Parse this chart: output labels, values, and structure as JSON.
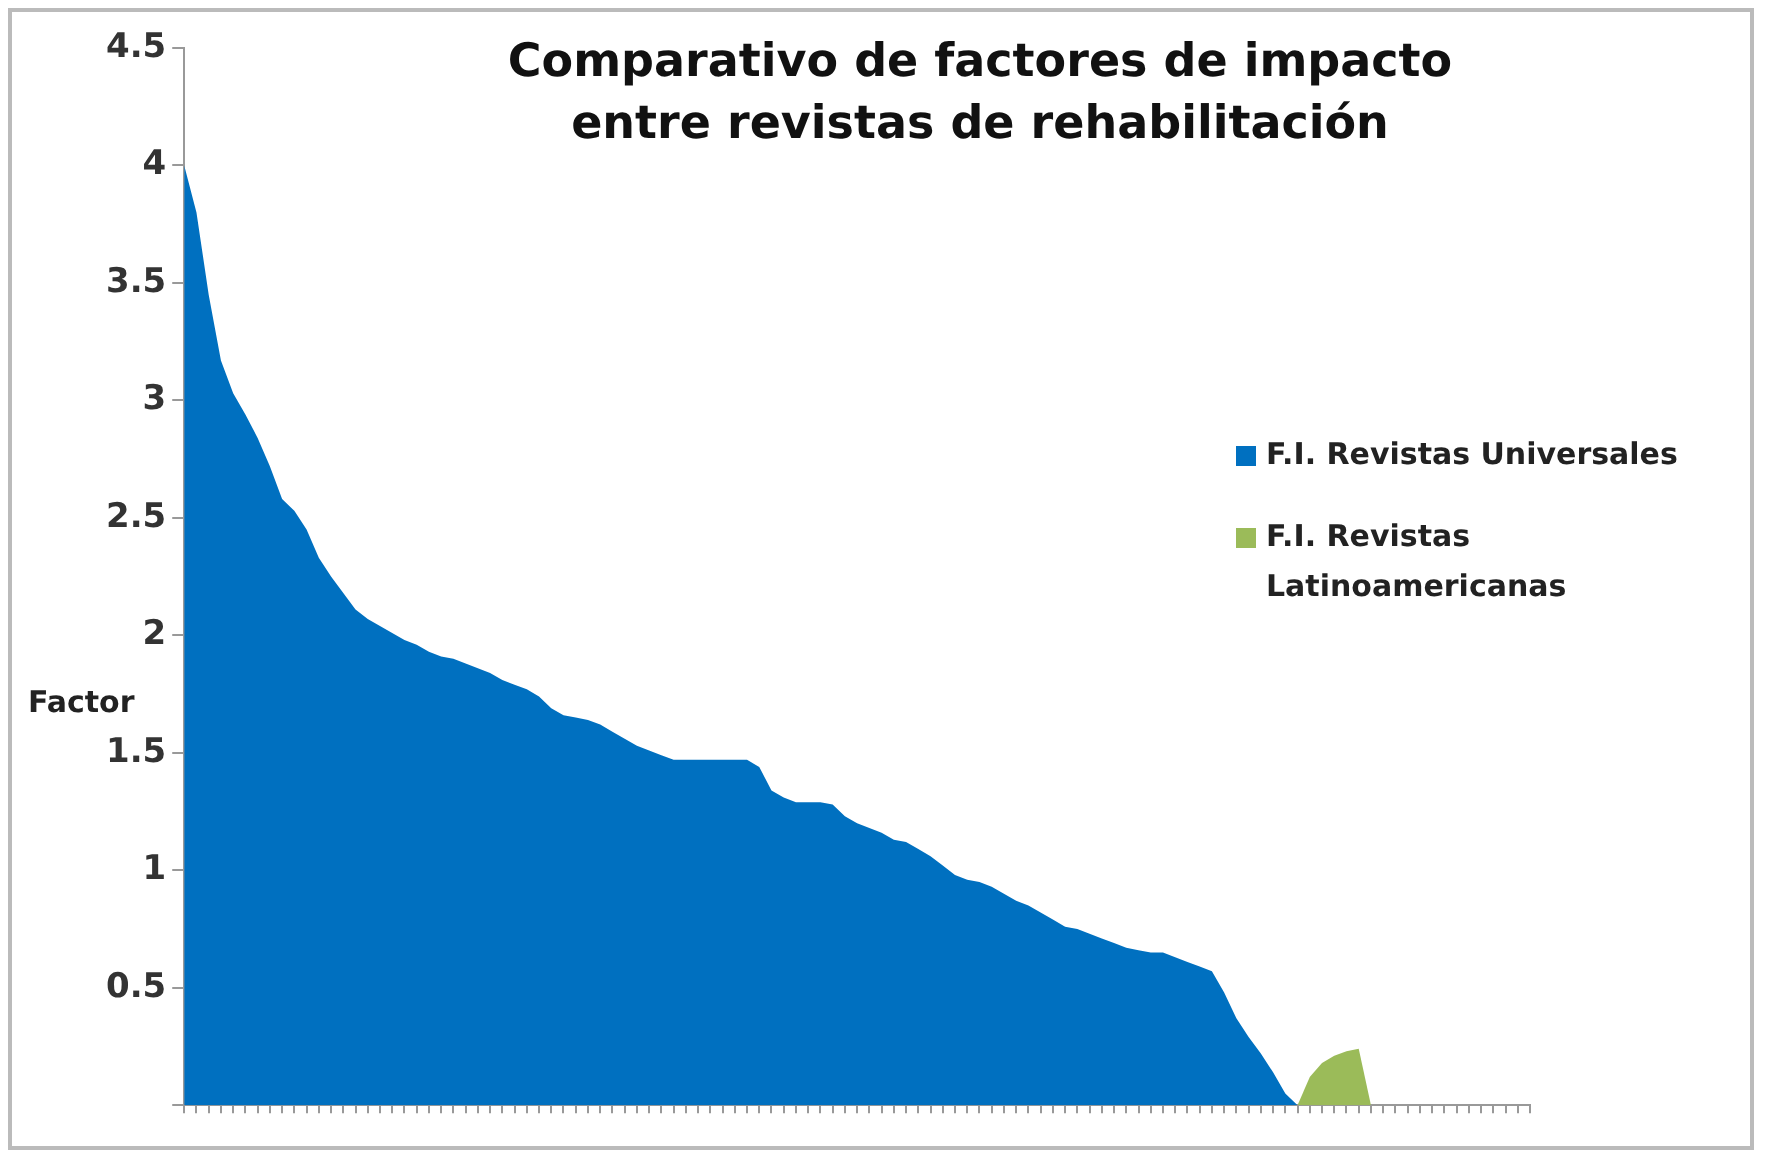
{
  "chart_data": {
    "type": "area",
    "title": "Comparativo de factores de impacto entre revistas de rehabilitación",
    "ylabel": "Factor",
    "categories": [
      null,
      null,
      null,
      null,
      null,
      null,
      null,
      null,
      null,
      null,
      null,
      null,
      null,
      null,
      null,
      null,
      null,
      null,
      null,
      null,
      null,
      null,
      null,
      null,
      null,
      null,
      null,
      null,
      null,
      null,
      null,
      null,
      null,
      null,
      null,
      null,
      null,
      null,
      null,
      null,
      null,
      null,
      null,
      null,
      null,
      null,
      null,
      null,
      null,
      null,
      null,
      null,
      null,
      null,
      null,
      null,
      null,
      null,
      null,
      null,
      null,
      null,
      null,
      null,
      null,
      null,
      null,
      null,
      null,
      null,
      null,
      null,
      null,
      null,
      null,
      null,
      null,
      null,
      null,
      null,
      null,
      null,
      null,
      null,
      null,
      null,
      null,
      null,
      null,
      null,
      null,
      null,
      null,
      null,
      null,
      null,
      null,
      null,
      null,
      null,
      null,
      null,
      null,
      null,
      null,
      null,
      null,
      null,
      null,
      null,
      null
    ],
    "series": [
      {
        "name": "F.I. Revistas Universales",
        "color": "#0070c0",
        "values": [
          4.0,
          3.8,
          3.45,
          3.17,
          3.03,
          2.94,
          2.84,
          2.72,
          2.58,
          2.53,
          2.45,
          2.33,
          2.25,
          2.18,
          2.11,
          2.07,
          2.04,
          2.01,
          1.98,
          1.96,
          1.93,
          1.91,
          1.9,
          1.88,
          1.86,
          1.84,
          1.81,
          1.79,
          1.77,
          1.74,
          1.69,
          1.66,
          1.65,
          1.64,
          1.62,
          1.59,
          1.56,
          1.53,
          1.51,
          1.49,
          1.47,
          1.47,
          1.47,
          1.47,
          1.47,
          1.47,
          1.47,
          1.44,
          1.34,
          1.31,
          1.29,
          1.29,
          1.29,
          1.28,
          1.23,
          1.2,
          1.18,
          1.16,
          1.13,
          1.12,
          1.09,
          1.06,
          1.02,
          0.98,
          0.96,
          0.95,
          0.93,
          0.9,
          0.87,
          0.85,
          0.82,
          0.79,
          0.76,
          0.75,
          0.73,
          0.71,
          0.69,
          0.67,
          0.66,
          0.65,
          0.65,
          0.63,
          0.61,
          0.59,
          0.57,
          0.48,
          0.37,
          0.29,
          0.22,
          0.14,
          0.05,
          0,
          null,
          null,
          null,
          null,
          null,
          null,
          null,
          null,
          null,
          null,
          null,
          null,
          null,
          null,
          null,
          null,
          null,
          null,
          null
        ]
      },
      {
        "name": "F.I. Revistas Latinoamericanas",
        "color": "#9bbb59",
        "values": [
          null,
          null,
          null,
          null,
          null,
          null,
          null,
          null,
          null,
          null,
          null,
          null,
          null,
          null,
          null,
          null,
          null,
          null,
          null,
          null,
          null,
          null,
          null,
          null,
          null,
          null,
          null,
          null,
          null,
          null,
          null,
          null,
          null,
          null,
          null,
          null,
          null,
          null,
          null,
          null,
          null,
          null,
          null,
          null,
          null,
          null,
          null,
          null,
          null,
          null,
          null,
          null,
          null,
          null,
          null,
          null,
          null,
          null,
          null,
          null,
          null,
          null,
          null,
          null,
          null,
          null,
          null,
          null,
          null,
          null,
          null,
          null,
          null,
          null,
          null,
          null,
          null,
          null,
          null,
          null,
          null,
          null,
          null,
          null,
          null,
          null,
          null,
          null,
          null,
          null,
          null,
          0,
          0.12,
          0.18,
          0.21,
          0.23,
          0.24,
          0,
          null,
          null,
          null,
          null,
          null,
          null,
          null,
          null,
          null,
          null,
          null,
          null,
          null
        ]
      }
    ],
    "ylim": [
      0,
      4.5
    ],
    "yticks": [
      {
        "value": 0,
        "label": null
      },
      0.5,
      1,
      1.5,
      2,
      2.5,
      3,
      3.5,
      4,
      4.5
    ],
    "legend": "right",
    "grid": false
  }
}
